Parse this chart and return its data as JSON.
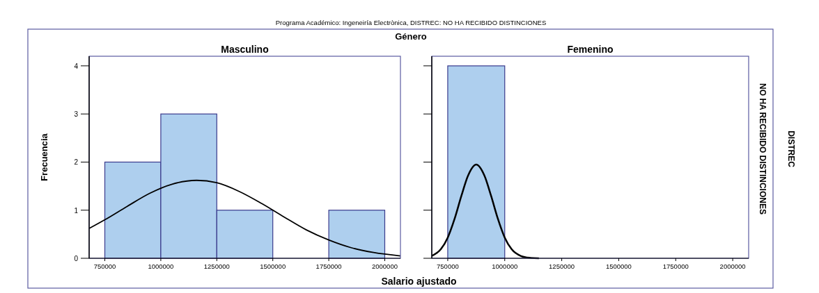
{
  "chart_data": [
    {
      "type": "histogram",
      "title": "Masculino",
      "xlabel": "Salario ajustado",
      "ylabel": "Frecuencia",
      "annotations": [
        "Programa Académico: Ingeneiría Electrònica, DISTREC: NO HA RECIBIDO DISTINCIONES",
        "Género"
      ],
      "bins": [
        750000,
        1000000,
        1250000,
        1500000,
        1750000,
        2000000
      ],
      "values": [
        2,
        3,
        1,
        0,
        1
      ],
      "color": "#aecfee",
      "xlim": [
        680000,
        2070000
      ],
      "xticks": [
        750000,
        1000000,
        1250000,
        1500000,
        1750000,
        2000000
      ],
      "ylim": [
        0,
        4.2
      ],
      "yticks": [
        0,
        1,
        2,
        3,
        4
      ],
      "grid": false,
      "series": [
        {
          "type": "line",
          "color": "#000000",
          "x": [
            680000,
            750000,
            850000,
            950000,
            1050000,
            1160000,
            1250000,
            1350000,
            1450000,
            1550000,
            1650000,
            1750000,
            1850000,
            1950000,
            2070000
          ],
          "values": [
            0.62,
            0.8,
            1.08,
            1.35,
            1.54,
            1.62,
            1.57,
            1.39,
            1.14,
            0.86,
            0.59,
            0.38,
            0.22,
            0.12,
            0.05
          ]
        }
      ]
    },
    {
      "type": "histogram",
      "title": "Femenino",
      "annotations": [
        "NO HA RECIBIDO DISTINCIONES",
        "DISTREC"
      ],
      "bins": [
        750000,
        1000000
      ],
      "values": [
        4
      ],
      "color": "#aecfee",
      "xlim": [
        680000,
        2070000
      ],
      "xticks": [
        750000,
        1000000,
        1250000,
        1500000,
        1750000,
        2000000
      ],
      "ylim": [
        0,
        4.2
      ],
      "yticks": [
        0,
        1,
        2,
        3,
        4
      ],
      "tick_labels": "x",
      "grid": false,
      "series": [
        {
          "type": "line",
          "color": "#000000",
          "x": [
            680000,
            720000,
            750000,
            780000,
            810000,
            840000,
            875000,
            910000,
            940000,
            970000,
            1000000,
            1030000,
            1070000,
            1110000,
            1150000
          ],
          "values": [
            0.05,
            0.19,
            0.43,
            0.82,
            1.3,
            1.73,
            1.95,
            1.73,
            1.3,
            0.82,
            0.43,
            0.19,
            0.05,
            0.01,
            0
          ]
        }
      ]
    }
  ]
}
